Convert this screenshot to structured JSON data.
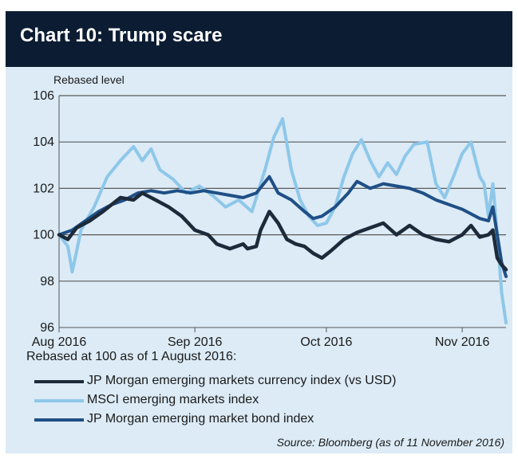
{
  "chart_data": {
    "type": "line",
    "title": "Chart 10: Trump scare",
    "ylabel": "Rebased level",
    "ylim": [
      96,
      106
    ],
    "y_ticks": [
      96,
      98,
      100,
      102,
      104,
      106
    ],
    "x_range": [
      "2016-08-01",
      "2016-11-11"
    ],
    "x_ticks": [
      {
        "label": "Aug 2016",
        "date": "2016-08-01"
      },
      {
        "label": "Sep 2016",
        "date": "2016-09-01"
      },
      {
        "label": "Oct 2016",
        "date": "2016-10-01"
      },
      {
        "label": "Nov 2016",
        "date": "2016-11-01"
      }
    ],
    "grid": "horizontal",
    "note": "Rebased at 100 as of 1 August 2016:",
    "source": "Source: Bloomberg (as of 11 November 2016)",
    "series": [
      {
        "name": "JP Morgan emerging markets currency index (vs USD)",
        "color": "#1c2a3a",
        "points": [
          [
            "2016-08-01",
            100.0
          ],
          [
            "2016-08-03",
            99.8
          ],
          [
            "2016-08-05",
            100.3
          ],
          [
            "2016-08-08",
            100.6
          ],
          [
            "2016-08-11",
            101.0
          ],
          [
            "2016-08-15",
            101.6
          ],
          [
            "2016-08-18",
            101.5
          ],
          [
            "2016-08-20",
            101.8
          ],
          [
            "2016-08-23",
            101.5
          ],
          [
            "2016-08-26",
            101.2
          ],
          [
            "2016-08-29",
            100.8
          ],
          [
            "2016-09-01",
            100.2
          ],
          [
            "2016-09-04",
            100.0
          ],
          [
            "2016-09-06",
            99.6
          ],
          [
            "2016-09-09",
            99.4
          ],
          [
            "2016-09-12",
            99.6
          ],
          [
            "2016-09-13",
            99.4
          ],
          [
            "2016-09-15",
            99.5
          ],
          [
            "2016-09-16",
            100.2
          ],
          [
            "2016-09-18",
            101.0
          ],
          [
            "2016-09-20",
            100.5
          ],
          [
            "2016-09-22",
            99.8
          ],
          [
            "2016-09-24",
            99.6
          ],
          [
            "2016-09-26",
            99.5
          ],
          [
            "2016-09-28",
            99.2
          ],
          [
            "2016-09-30",
            99.0
          ],
          [
            "2016-10-02",
            99.3
          ],
          [
            "2016-10-05",
            99.8
          ],
          [
            "2016-10-08",
            100.1
          ],
          [
            "2016-10-11",
            100.3
          ],
          [
            "2016-10-14",
            100.5
          ],
          [
            "2016-10-17",
            100.0
          ],
          [
            "2016-10-20",
            100.4
          ],
          [
            "2016-10-23",
            100.0
          ],
          [
            "2016-10-26",
            99.8
          ],
          [
            "2016-10-29",
            99.7
          ],
          [
            "2016-11-01",
            100.0
          ],
          [
            "2016-11-03",
            100.4
          ],
          [
            "2016-11-05",
            99.9
          ],
          [
            "2016-11-07",
            100.0
          ],
          [
            "2016-11-08",
            100.2
          ],
          [
            "2016-11-09",
            99.0
          ],
          [
            "2016-11-10",
            98.7
          ],
          [
            "2016-11-11",
            98.5
          ]
        ]
      },
      {
        "name": "MSCI emerging markets index",
        "color": "#8ec7e9",
        "points": [
          [
            "2016-08-01",
            100.0
          ],
          [
            "2016-08-03",
            99.5
          ],
          [
            "2016-08-04",
            98.4
          ],
          [
            "2016-08-06",
            100.2
          ],
          [
            "2016-08-09",
            101.2
          ],
          [
            "2016-08-12",
            102.5
          ],
          [
            "2016-08-15",
            103.2
          ],
          [
            "2016-08-18",
            103.8
          ],
          [
            "2016-08-20",
            103.2
          ],
          [
            "2016-08-22",
            103.7
          ],
          [
            "2016-08-24",
            102.8
          ],
          [
            "2016-08-27",
            102.4
          ],
          [
            "2016-08-30",
            101.8
          ],
          [
            "2016-09-02",
            102.1
          ],
          [
            "2016-09-05",
            101.7
          ],
          [
            "2016-09-08",
            101.2
          ],
          [
            "2016-09-11",
            101.5
          ],
          [
            "2016-09-14",
            101.0
          ],
          [
            "2016-09-17",
            102.8
          ],
          [
            "2016-09-19",
            104.2
          ],
          [
            "2016-09-21",
            105.0
          ],
          [
            "2016-09-23",
            102.8
          ],
          [
            "2016-09-25",
            101.5
          ],
          [
            "2016-09-27",
            100.8
          ],
          [
            "2016-09-29",
            100.4
          ],
          [
            "2016-10-01",
            100.5
          ],
          [
            "2016-10-03",
            101.2
          ],
          [
            "2016-10-05",
            102.5
          ],
          [
            "2016-10-07",
            103.5
          ],
          [
            "2016-10-09",
            104.1
          ],
          [
            "2016-10-11",
            103.2
          ],
          [
            "2016-10-13",
            102.5
          ],
          [
            "2016-10-15",
            103.1
          ],
          [
            "2016-10-17",
            102.6
          ],
          [
            "2016-10-19",
            103.4
          ],
          [
            "2016-10-21",
            103.9
          ],
          [
            "2016-10-24",
            104.0
          ],
          [
            "2016-10-26",
            102.2
          ],
          [
            "2016-10-28",
            101.6
          ],
          [
            "2016-10-30",
            102.5
          ],
          [
            "2016-11-01",
            103.5
          ],
          [
            "2016-11-03",
            104.0
          ],
          [
            "2016-11-05",
            102.5
          ],
          [
            "2016-11-06",
            102.2
          ],
          [
            "2016-11-07",
            100.8
          ],
          [
            "2016-11-08",
            102.2
          ],
          [
            "2016-11-09",
            100.0
          ],
          [
            "2016-11-10",
            97.5
          ],
          [
            "2016-11-11",
            96.2
          ]
        ]
      },
      {
        "name": "JP Morgan emerging market bond index",
        "color": "#1f4f86",
        "points": [
          [
            "2016-08-01",
            100.0
          ],
          [
            "2016-08-04",
            100.2
          ],
          [
            "2016-08-07",
            100.6
          ],
          [
            "2016-08-10",
            101.0
          ],
          [
            "2016-08-13",
            101.3
          ],
          [
            "2016-08-16",
            101.5
          ],
          [
            "2016-08-19",
            101.8
          ],
          [
            "2016-08-22",
            101.9
          ],
          [
            "2016-08-25",
            101.8
          ],
          [
            "2016-08-28",
            101.9
          ],
          [
            "2016-08-31",
            101.8
          ],
          [
            "2016-09-03",
            101.9
          ],
          [
            "2016-09-06",
            101.8
          ],
          [
            "2016-09-09",
            101.7
          ],
          [
            "2016-09-12",
            101.6
          ],
          [
            "2016-09-15",
            101.8
          ],
          [
            "2016-09-18",
            102.5
          ],
          [
            "2016-09-20",
            101.8
          ],
          [
            "2016-09-23",
            101.5
          ],
          [
            "2016-09-26",
            101.0
          ],
          [
            "2016-09-28",
            100.7
          ],
          [
            "2016-09-30",
            100.8
          ],
          [
            "2016-10-03",
            101.2
          ],
          [
            "2016-10-06",
            101.8
          ],
          [
            "2016-10-08",
            102.3
          ],
          [
            "2016-10-11",
            102.0
          ],
          [
            "2016-10-14",
            102.2
          ],
          [
            "2016-10-17",
            102.1
          ],
          [
            "2016-10-20",
            102.0
          ],
          [
            "2016-10-23",
            101.8
          ],
          [
            "2016-10-26",
            101.5
          ],
          [
            "2016-10-29",
            101.3
          ],
          [
            "2016-11-01",
            101.1
          ],
          [
            "2016-11-03",
            100.9
          ],
          [
            "2016-11-05",
            100.7
          ],
          [
            "2016-11-07",
            100.6
          ],
          [
            "2016-11-08",
            101.2
          ],
          [
            "2016-11-09",
            100.0
          ],
          [
            "2016-11-10",
            98.8
          ],
          [
            "2016-11-11",
            98.2
          ]
        ]
      }
    ]
  }
}
